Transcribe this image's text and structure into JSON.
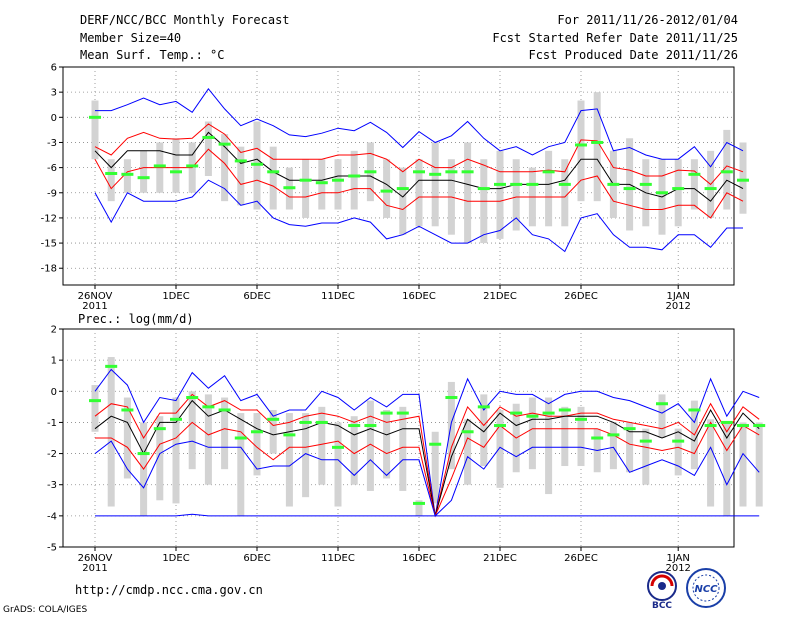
{
  "header": {
    "title": "DERF/NCC/BCC Monthly Forecast",
    "member_size": "Member Size=40",
    "variable": "Mean Surf. Temp.: °C",
    "forecast_period": "For 2011/11/26-2012/01/04",
    "started_date": "Fcst Started Refer Date 2011/11/25",
    "produced_date": "Fcst Produced Date 2011/11/26"
  },
  "footer": {
    "url": "http://cmdp.ncc.cma.gov.cn",
    "grads": "GrADS: COLA/IGES",
    "logo_bcc_text": "BCC",
    "logo_ncc_text": "NCC"
  },
  "colors": {
    "envelope": "#0000ff",
    "spread": "#ff0000",
    "mean": "#000000",
    "median": "#33ff33",
    "box": "#d3d3d3",
    "grid": "#888888"
  },
  "chart_data": [
    {
      "type": "line",
      "title": "Mean Surf. Temp.: °C",
      "ylim": [
        -20,
        6
      ],
      "yticks": [
        6,
        3,
        0,
        -3,
        -6,
        -9,
        -12,
        -15,
        -18
      ],
      "xlabels": [
        {
          "day": 0,
          "text": "26NOV",
          "sub": "2011"
        },
        {
          "day": 5,
          "text": "1DEC"
        },
        {
          "day": 10,
          "text": "6DEC"
        },
        {
          "day": 15,
          "text": "11DEC"
        },
        {
          "day": 20,
          "text": "16DEC"
        },
        {
          "day": 25,
          "text": "21DEC"
        },
        {
          "day": 30,
          "text": "26DEC"
        },
        {
          "day": 36,
          "text": "1JAN",
          "sub": "2012"
        }
      ],
      "series": [
        {
          "name": "max",
          "values": [
            0.8,
            0.8,
            1.5,
            2.3,
            1.5,
            1.9,
            0.6,
            3.4,
            1.0,
            -1.0,
            -0.2,
            -1.0,
            -2.1,
            -2.3,
            -1.9,
            -1.3,
            -1.6,
            -0.6,
            -1.8,
            -3.6,
            -1.7,
            -3.0,
            -2.2,
            -0.5,
            -2.5,
            -4.0,
            -3.5,
            -4.5,
            -3.5,
            -3.0,
            0.8,
            1.0,
            -4.0,
            -3.6,
            -4.5,
            -5.0,
            -5.0,
            -3.5,
            -5.9,
            -3.0,
            -4.0
          ]
        },
        {
          "name": "upper",
          "values": [
            -3.5,
            -4.5,
            -2.5,
            -1.8,
            -2.5,
            -2.6,
            -2.5,
            -0.8,
            -2.0,
            -4.2,
            -3.7,
            -5.0,
            -5.0,
            -5.0,
            -5.0,
            -4.5,
            -4.5,
            -4.3,
            -5.0,
            -6.5,
            -5.0,
            -6.0,
            -6.0,
            -5.0,
            -5.7,
            -6.5,
            -6.5,
            -6.5,
            -6.3,
            -6.5,
            -2.7,
            -2.8,
            -6.0,
            -6.3,
            -7.0,
            -7.0,
            -6.3,
            -6.4,
            -8.0,
            -5.8,
            -6.5
          ]
        },
        {
          "name": "mean",
          "values": [
            -4.0,
            -6.0,
            -4.0,
            -4.0,
            -4.0,
            -4.5,
            -4.5,
            -1.8,
            -3.5,
            -5.5,
            -5.0,
            -6.5,
            -7.5,
            -7.5,
            -7.5,
            -7.0,
            -7.0,
            -7.0,
            -8.0,
            -9.5,
            -7.5,
            -7.5,
            -7.5,
            -8.0,
            -8.5,
            -8.5,
            -8.0,
            -8.0,
            -8.0,
            -7.5,
            -5.0,
            -5.0,
            -8.0,
            -8.0,
            -9.0,
            -9.5,
            -8.5,
            -8.5,
            -10.0,
            -7.5,
            -8.5
          ]
        },
        {
          "name": "lower",
          "values": [
            -5.0,
            -8.5,
            -6.5,
            -6.0,
            -6.0,
            -6.0,
            -6.0,
            -3.8,
            -5.5,
            -8.0,
            -7.5,
            -8.2,
            -9.5,
            -9.5,
            -9.0,
            -9.0,
            -8.5,
            -8.5,
            -10.5,
            -11.0,
            -9.5,
            -9.5,
            -9.5,
            -10.0,
            -10.0,
            -10.0,
            -9.5,
            -9.5,
            -9.5,
            -9.5,
            -7.5,
            -7.0,
            -10.0,
            -10.5,
            -11.0,
            -11.0,
            -10.5,
            -10.5,
            -12.0,
            -9.0,
            -10.0
          ]
        },
        {
          "name": "min",
          "values": [
            -9.0,
            -12.5,
            -9.0,
            -10.0,
            -10.0,
            -10.0,
            -9.5,
            -7.5,
            -8.5,
            -10.5,
            -10.0,
            -12.0,
            -12.8,
            -13.0,
            -12.6,
            -12.6,
            -12.0,
            -12.5,
            -14.5,
            -14.0,
            -13.0,
            -14.0,
            -15.0,
            -15.0,
            -14.0,
            -13.5,
            -12.0,
            -14.0,
            -14.5,
            -16.0,
            -12.0,
            -11.5,
            -14.0,
            -15.5,
            -15.5,
            -15.8,
            -14.0,
            -14.0,
            -15.5,
            -13.2,
            -13.2
          ]
        }
      ],
      "median": [
        0.0,
        -6.7,
        -6.8,
        -7.2,
        -5.8,
        -6.5,
        -5.8,
        -2.4,
        -3.2,
        -5.2,
        -5.6,
        -6.5,
        -8.4,
        -7.5,
        -7.8,
        -7.5,
        -7.0,
        -6.5,
        -8.8,
        -8.5,
        -6.5,
        -6.8,
        -6.5,
        -6.5,
        -8.5,
        -8.0,
        -8.0,
        -8.0,
        -6.5,
        -8.0,
        -3.3,
        -3.0,
        -8.0,
        -8.5,
        -8.0,
        -9.0,
        -8.5,
        -6.8,
        -8.5,
        -6.5,
        -7.5
      ],
      "boxes": [
        [
          -5,
          2
        ],
        [
          -10,
          -5
        ],
        [
          -9,
          -5
        ],
        [
          -9,
          -4
        ],
        [
          -9,
          -3
        ],
        [
          -9,
          -2.5
        ],
        [
          -9,
          -3
        ],
        [
          -7,
          -0.5
        ],
        [
          -10,
          -2
        ],
        [
          -10.5,
          -3.5
        ],
        [
          -11,
          -0.5
        ],
        [
          -11,
          -3.5
        ],
        [
          -11,
          -6
        ],
        [
          -12,
          -5
        ],
        [
          -11,
          -5
        ],
        [
          -11,
          -5
        ],
        [
          -11,
          -4
        ],
        [
          -10,
          -3
        ],
        [
          -12,
          -5
        ],
        [
          -14,
          -6
        ],
        [
          -13,
          -5
        ],
        [
          -13,
          -3
        ],
        [
          -14,
          -5
        ],
        [
          -15,
          -3
        ],
        [
          -15,
          -5
        ],
        [
          -14.5,
          -4
        ],
        [
          -13.5,
          -5
        ],
        [
          -13,
          -6
        ],
        [
          -13,
          -4
        ],
        [
          -13,
          -5
        ],
        [
          -10,
          2
        ],
        [
          -10,
          3
        ],
        [
          -12,
          -4
        ],
        [
          -13.5,
          -2.5
        ],
        [
          -13,
          -5
        ],
        [
          -14,
          -5
        ],
        [
          -13,
          -5
        ],
        [
          -11,
          -5
        ],
        [
          -12,
          -4
        ],
        [
          -11,
          -1.5
        ],
        [
          -11.5,
          -3
        ]
      ]
    },
    {
      "type": "line",
      "title": "Prec.: log(mm/d)",
      "ylim": [
        -5,
        2
      ],
      "yticks": [
        2,
        1,
        0,
        -1,
        -2,
        -3,
        -4,
        -5
      ],
      "xlabels": [
        {
          "day": 0,
          "text": "26NOV",
          "sub": "2011"
        },
        {
          "day": 5,
          "text": "1DEC"
        },
        {
          "day": 10,
          "text": "6DEC"
        },
        {
          "day": 15,
          "text": "11DEC"
        },
        {
          "day": 20,
          "text": "16DEC"
        },
        {
          "day": 25,
          "text": "21DEC"
        },
        {
          "day": 30,
          "text": "26DEC"
        },
        {
          "day": 36,
          "text": "1JAN",
          "sub": "2012"
        }
      ],
      "series": [
        {
          "name": "max",
          "values": [
            0.0,
            0.7,
            0.2,
            -1.0,
            -0.2,
            -0.3,
            0.6,
            0.1,
            0.5,
            -0.3,
            -0.1,
            -0.8,
            -0.6,
            -0.6,
            0.0,
            -0.2,
            -0.6,
            -0.2,
            -0.5,
            -0.1,
            -0.1,
            -4.0,
            -1.0,
            0.4,
            -0.6,
            0.0,
            -0.1,
            -0.1,
            -0.4,
            -0.1,
            0.0,
            0.0,
            -0.2,
            -0.3,
            -0.5,
            -0.7,
            -0.4,
            -1.0,
            0.4,
            -0.8,
            0.0,
            -0.2
          ]
        },
        {
          "name": "upper",
          "values": [
            -0.8,
            -0.4,
            -0.5,
            -1.5,
            -0.7,
            -0.7,
            -0.1,
            -0.5,
            -0.3,
            -0.6,
            -0.6,
            -1.1,
            -1.0,
            -0.8,
            -0.7,
            -0.8,
            -1.0,
            -0.8,
            -1.0,
            -0.9,
            -0.8,
            -4.0,
            -1.8,
            -0.5,
            -1.1,
            -0.5,
            -0.8,
            -0.7,
            -0.8,
            -0.8,
            -0.7,
            -0.7,
            -0.9,
            -1.0,
            -1.1,
            -1.2,
            -1.0,
            -1.4,
            -0.4,
            -1.3,
            -0.5,
            -0.9
          ]
        },
        {
          "name": "mean",
          "values": [
            -1.2,
            -0.8,
            -1.0,
            -2.0,
            -1.0,
            -1.0,
            -0.3,
            -0.8,
            -0.6,
            -0.9,
            -1.2,
            -1.4,
            -1.3,
            -1.2,
            -1.0,
            -1.1,
            -1.4,
            -1.2,
            -1.4,
            -1.2,
            -1.2,
            -4.0,
            -2.1,
            -0.9,
            -1.3,
            -0.7,
            -1.1,
            -0.9,
            -0.9,
            -0.8,
            -0.8,
            -0.8,
            -1.0,
            -1.3,
            -1.3,
            -1.5,
            -1.3,
            -1.6,
            -0.6,
            -1.5,
            -0.7,
            -1.2
          ]
        },
        {
          "name": "lower",
          "values": [
            -1.5,
            -1.5,
            -1.8,
            -2.5,
            -1.7,
            -1.5,
            -1.0,
            -1.4,
            -1.2,
            -1.3,
            -1.8,
            -2.2,
            -1.8,
            -1.8,
            -1.7,
            -1.6,
            -2.0,
            -1.7,
            -2.0,
            -1.8,
            -1.8,
            -4.0,
            -2.8,
            -1.5,
            -1.8,
            -1.1,
            -1.5,
            -1.2,
            -1.2,
            -1.2,
            -1.2,
            -1.2,
            -1.4,
            -1.7,
            -1.8,
            -1.9,
            -1.8,
            -2.0,
            -1.0,
            -1.9,
            -1.1,
            -1.4
          ]
        },
        {
          "name": "min",
          "values": [
            -2.0,
            -1.6,
            -2.5,
            -3.1,
            -2.0,
            -1.7,
            -1.6,
            -1.8,
            -1.8,
            -1.8,
            -2.5,
            -2.4,
            -2.4,
            -2.0,
            -2.2,
            -2.2,
            -2.7,
            -2.2,
            -2.7,
            -2.2,
            -2.2,
            -4.0,
            -3.5,
            -2.1,
            -2.5,
            -1.8,
            -2.1,
            -1.8,
            -1.8,
            -1.8,
            -1.8,
            -1.9,
            -1.8,
            -2.6,
            -2.4,
            -2.2,
            -2.4,
            -2.7,
            -1.8,
            -3.0,
            -2.0,
            -2.6
          ]
        },
        {
          "name": "floor",
          "values": [
            -4.0,
            -4.0,
            -4.0,
            -4.0,
            -4.0,
            -4.0,
            -3.95,
            -4.0,
            -4.0,
            -4.0,
            -4.0,
            -4.0,
            -4.0,
            -4.0,
            -4.0,
            -4.0,
            -4.0,
            -4.0,
            -4.0,
            -4.0,
            -4.0,
            -4.0,
            -4.0,
            -4.0,
            -4.0,
            -4.0,
            -4.0,
            -4.0,
            -4.0,
            -4.0,
            -4.0,
            -4.0,
            -4.0,
            -4.0,
            -4.0,
            -4.0,
            -4.0,
            -4.0,
            -4.0,
            -4.0,
            -4.0,
            -4.0
          ]
        }
      ],
      "median": [
        -0.3,
        0.8,
        -0.6,
        -2.0,
        -1.2,
        -0.9,
        -0.2,
        -0.5,
        -0.6,
        -1.5,
        -1.3,
        -0.9,
        -1.4,
        -1.0,
        -1.0,
        -1.8,
        -1.1,
        -1.1,
        -0.7,
        -0.7,
        -3.6,
        -1.7,
        -0.2,
        -1.3,
        -0.5,
        -1.1,
        -0.7,
        -0.8,
        -0.7,
        -0.6,
        -0.9,
        -1.5,
        -1.4,
        -1.2,
        -1.6,
        -0.4,
        -1.6,
        -0.6,
        -1.1,
        -1.0,
        -1.1,
        -1.1
      ],
      "boxes": [
        [
          -1.3,
          0.2
        ],
        [
          -3.7,
          1.1
        ],
        [
          -2.8,
          -0.2
        ],
        [
          -4.0,
          -1.0
        ],
        [
          -3.5,
          -0.8
        ],
        [
          -3.6,
          -0.2
        ],
        [
          -2.5,
          0.0
        ],
        [
          -3.0,
          -0.1
        ],
        [
          -2.5,
          -0.2
        ],
        [
          -4.0,
          -0.7
        ],
        [
          -2.7,
          -0.7
        ],
        [
          -2.0,
          -0.6
        ],
        [
          -3.7,
          -0.7
        ],
        [
          -3.4,
          -0.7
        ],
        [
          -3.0,
          -0.5
        ],
        [
          -3.7,
          -1.0
        ],
        [
          -3.0,
          -0.8
        ],
        [
          -3.2,
          -0.3
        ],
        [
          -2.8,
          -0.6
        ],
        [
          -3.2,
          -0.5
        ],
        [
          -4.0,
          -3.5
        ],
        [
          -3.6,
          -1.3
        ],
        [
          -2.5,
          0.3
        ],
        [
          -3.0,
          -0.9
        ],
        [
          -2.4,
          -0.1
        ],
        [
          -3.1,
          -0.6
        ],
        [
          -2.6,
          -0.4
        ],
        [
          -2.5,
          -0.2
        ],
        [
          -3.3,
          -0.2
        ],
        [
          -2.4,
          -0.5
        ],
        [
          -2.4,
          -0.5
        ],
        [
          -2.6,
          -1.2
        ],
        [
          -2.5,
          -1.0
        ],
        [
          -2.6,
          -1.0
        ],
        [
          -3.0,
          -1.2
        ],
        [
          -1.5,
          -0.1
        ],
        [
          -2.7,
          -1.2
        ],
        [
          -2.5,
          -0.3
        ],
        [
          -3.7,
          -0.9
        ],
        [
          -4.0,
          -1.0
        ],
        [
          -3.7,
          -1.0
        ],
        [
          -3.7,
          -1.0
        ]
      ]
    }
  ]
}
